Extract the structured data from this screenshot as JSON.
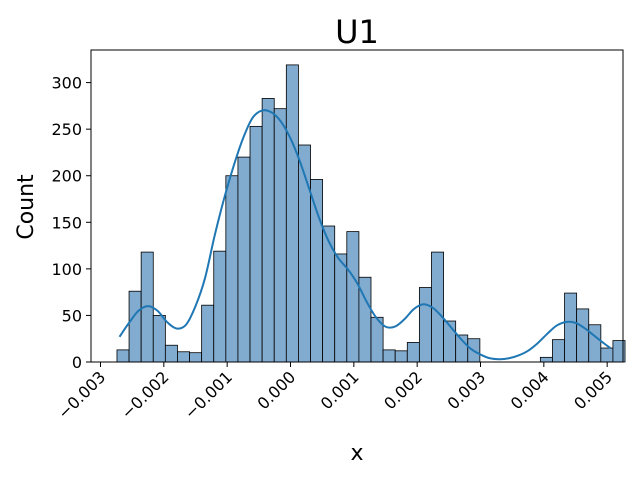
{
  "chart_data": {
    "type": "bar",
    "subtype": "histogram-with-kde",
    "title": "U1",
    "xlabel": "x",
    "ylabel": "Count",
    "xlim": [
      -0.00315,
      0.00525
    ],
    "ylim": [
      0,
      335
    ],
    "grid": false,
    "legend": "none",
    "x_ticks": [
      {
        "value": -0.003,
        "label": "−0.003"
      },
      {
        "value": -0.002,
        "label": "−0.002"
      },
      {
        "value": -0.001,
        "label": "−0.001"
      },
      {
        "value": 0.0,
        "label": "0.000"
      },
      {
        "value": 0.001,
        "label": "0.001"
      },
      {
        "value": 0.002,
        "label": "0.002"
      },
      {
        "value": 0.003,
        "label": "0.003"
      },
      {
        "value": 0.004,
        "label": "0.004"
      },
      {
        "value": 0.005,
        "label": "0.005"
      }
    ],
    "y_ticks": [
      {
        "value": 0,
        "label": "0"
      },
      {
        "value": 50,
        "label": "50"
      },
      {
        "value": 100,
        "label": "100"
      },
      {
        "value": 150,
        "label": "150"
      },
      {
        "value": 200,
        "label": "200"
      },
      {
        "value": 250,
        "label": "250"
      },
      {
        "value": 300,
        "label": "300"
      }
    ],
    "bin_start": -0.00274,
    "bin_width": 0.000191,
    "counts": [
      13,
      76,
      118,
      50,
      18,
      11,
      10,
      61,
      119,
      200,
      220,
      253,
      283,
      272,
      319,
      233,
      196,
      146,
      116,
      140,
      91,
      48,
      13,
      12,
      21,
      80,
      118,
      44,
      29,
      25,
      0,
      0,
      0,
      0,
      0,
      5,
      24,
      74,
      57,
      40,
      15,
      23
    ],
    "kde": {
      "x": [
        -0.0027,
        -0.00255,
        -0.0024,
        -0.00225,
        -0.0021,
        -0.00195,
        -0.0018,
        -0.00165,
        -0.0015,
        -0.00135,
        -0.0012,
        -0.00105,
        -0.0009,
        -0.00075,
        -0.0006,
        -0.00045,
        -0.0003,
        -0.00015,
        0.0,
        0.00015,
        0.0003,
        0.00045,
        0.0006,
        0.00075,
        0.0009,
        0.00105,
        0.0012,
        0.00135,
        0.0015,
        0.00165,
        0.0018,
        0.00195,
        0.0021,
        0.00225,
        0.0024,
        0.00255,
        0.0027,
        0.00285,
        0.003,
        0.00315,
        0.0033,
        0.00345,
        0.0036,
        0.00375,
        0.0039,
        0.00405,
        0.0042,
        0.00435,
        0.0045,
        0.00465,
        0.0048,
        0.00495,
        0.00505
      ],
      "y": [
        27,
        42,
        55,
        60,
        55,
        43,
        36,
        40,
        60,
        90,
        135,
        175,
        210,
        240,
        262,
        270,
        268,
        258,
        240,
        215,
        185,
        155,
        130,
        112,
        100,
        85,
        65,
        48,
        38,
        38,
        46,
        57,
        62,
        58,
        48,
        36,
        24,
        14,
        8,
        4,
        3,
        4,
        7,
        12,
        20,
        30,
        39,
        43,
        42,
        36,
        28,
        20,
        15
      ],
      "color": "#1f77b4"
    },
    "bar_fill": "#81abcf",
    "bar_edge": "#000000"
  }
}
